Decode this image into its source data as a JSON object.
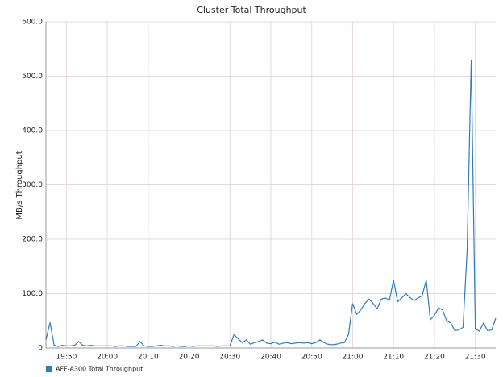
{
  "chart_data": {
    "type": "line",
    "title": "Cluster Total Throughput",
    "y_label": "MB/s Throughput",
    "x": [
      "19:45",
      "19:46",
      "19:47",
      "19:48",
      "19:49",
      "19:50",
      "19:51",
      "19:52",
      "19:53",
      "19:54",
      "19:55",
      "19:56",
      "19:57",
      "19:58",
      "19:59",
      "20:00",
      "20:01",
      "20:02",
      "20:03",
      "20:04",
      "20:05",
      "20:06",
      "20:07",
      "20:08",
      "20:09",
      "20:10",
      "20:11",
      "20:12",
      "20:13",
      "20:14",
      "20:15",
      "20:16",
      "20:17",
      "20:18",
      "20:19",
      "20:20",
      "20:21",
      "20:22",
      "20:23",
      "20:24",
      "20:25",
      "20:26",
      "20:27",
      "20:28",
      "20:29",
      "20:30",
      "20:31",
      "20:32",
      "20:33",
      "20:34",
      "20:35",
      "20:36",
      "20:37",
      "20:38",
      "20:39",
      "20:40",
      "20:41",
      "20:42",
      "20:43",
      "20:44",
      "20:45",
      "20:46",
      "20:47",
      "20:48",
      "20:49",
      "20:50",
      "20:51",
      "20:52",
      "20:53",
      "20:54",
      "20:55",
      "20:56",
      "20:57",
      "20:58",
      "20:59",
      "21:00",
      "21:01",
      "21:02",
      "21:03",
      "21:04",
      "21:05",
      "21:06",
      "21:07",
      "21:08",
      "21:09",
      "21:10",
      "21:11",
      "21:12",
      "21:13",
      "21:14",
      "21:15",
      "21:16",
      "21:17",
      "21:18",
      "21:19",
      "21:20",
      "21:21",
      "21:22",
      "21:23",
      "21:24",
      "21:25",
      "21:26",
      "21:27",
      "21:28",
      "21:29",
      "21:30",
      "21:31",
      "21:32",
      "21:33",
      "21:34",
      "21:35"
    ],
    "series": [
      {
        "name": "AFF-A300 Total Throughput",
        "color": "#2f7ac4",
        "values": [
          15,
          47,
          5,
          3,
          5,
          4,
          4,
          5,
          12,
          5,
          4,
          5,
          4,
          4,
          4,
          4,
          4,
          3,
          4,
          4,
          3,
          3,
          3,
          12,
          4,
          3,
          3,
          4,
          5,
          4,
          4,
          3,
          4,
          3,
          3,
          4,
          3,
          4,
          4,
          4,
          4,
          4,
          3,
          4,
          4,
          4,
          25,
          17,
          10,
          15,
          7,
          10,
          12,
          15,
          9,
          8,
          11,
          7,
          9,
          10,
          8,
          9,
          10,
          9,
          10,
          8,
          10,
          15,
          10,
          7,
          6,
          7,
          9,
          10,
          25,
          82,
          62,
          70,
          82,
          90,
          82,
          72,
          90,
          92,
          88,
          125,
          85,
          92,
          100,
          93,
          87,
          92,
          96,
          125,
          52,
          60,
          74,
          70,
          50,
          46,
          32,
          33,
          38,
          180,
          530,
          35,
          31,
          46,
          32,
          33,
          55
        ]
      }
    ],
    "xlim": [
      "19:45",
      "21:35"
    ],
    "xticks": [
      "19:50",
      "20:00",
      "20:10",
      "20:20",
      "20:30",
      "20:40",
      "20:50",
      "21:00",
      "21:10",
      "21:20",
      "21:30"
    ],
    "ylim": [
      0,
      600
    ],
    "yticks": [
      0,
      {
        "value": 100,
        "label": "100.0"
      },
      {
        "value": 200,
        "label": "200.0"
      },
      {
        "value": 300,
        "label": "300.0"
      },
      {
        "value": 400,
        "label": "400.0"
      },
      {
        "value": 500,
        "label": "500.0"
      },
      {
        "value": 600,
        "label": "600.0"
      }
    ],
    "grid": true,
    "legend": "bottom-left"
  }
}
